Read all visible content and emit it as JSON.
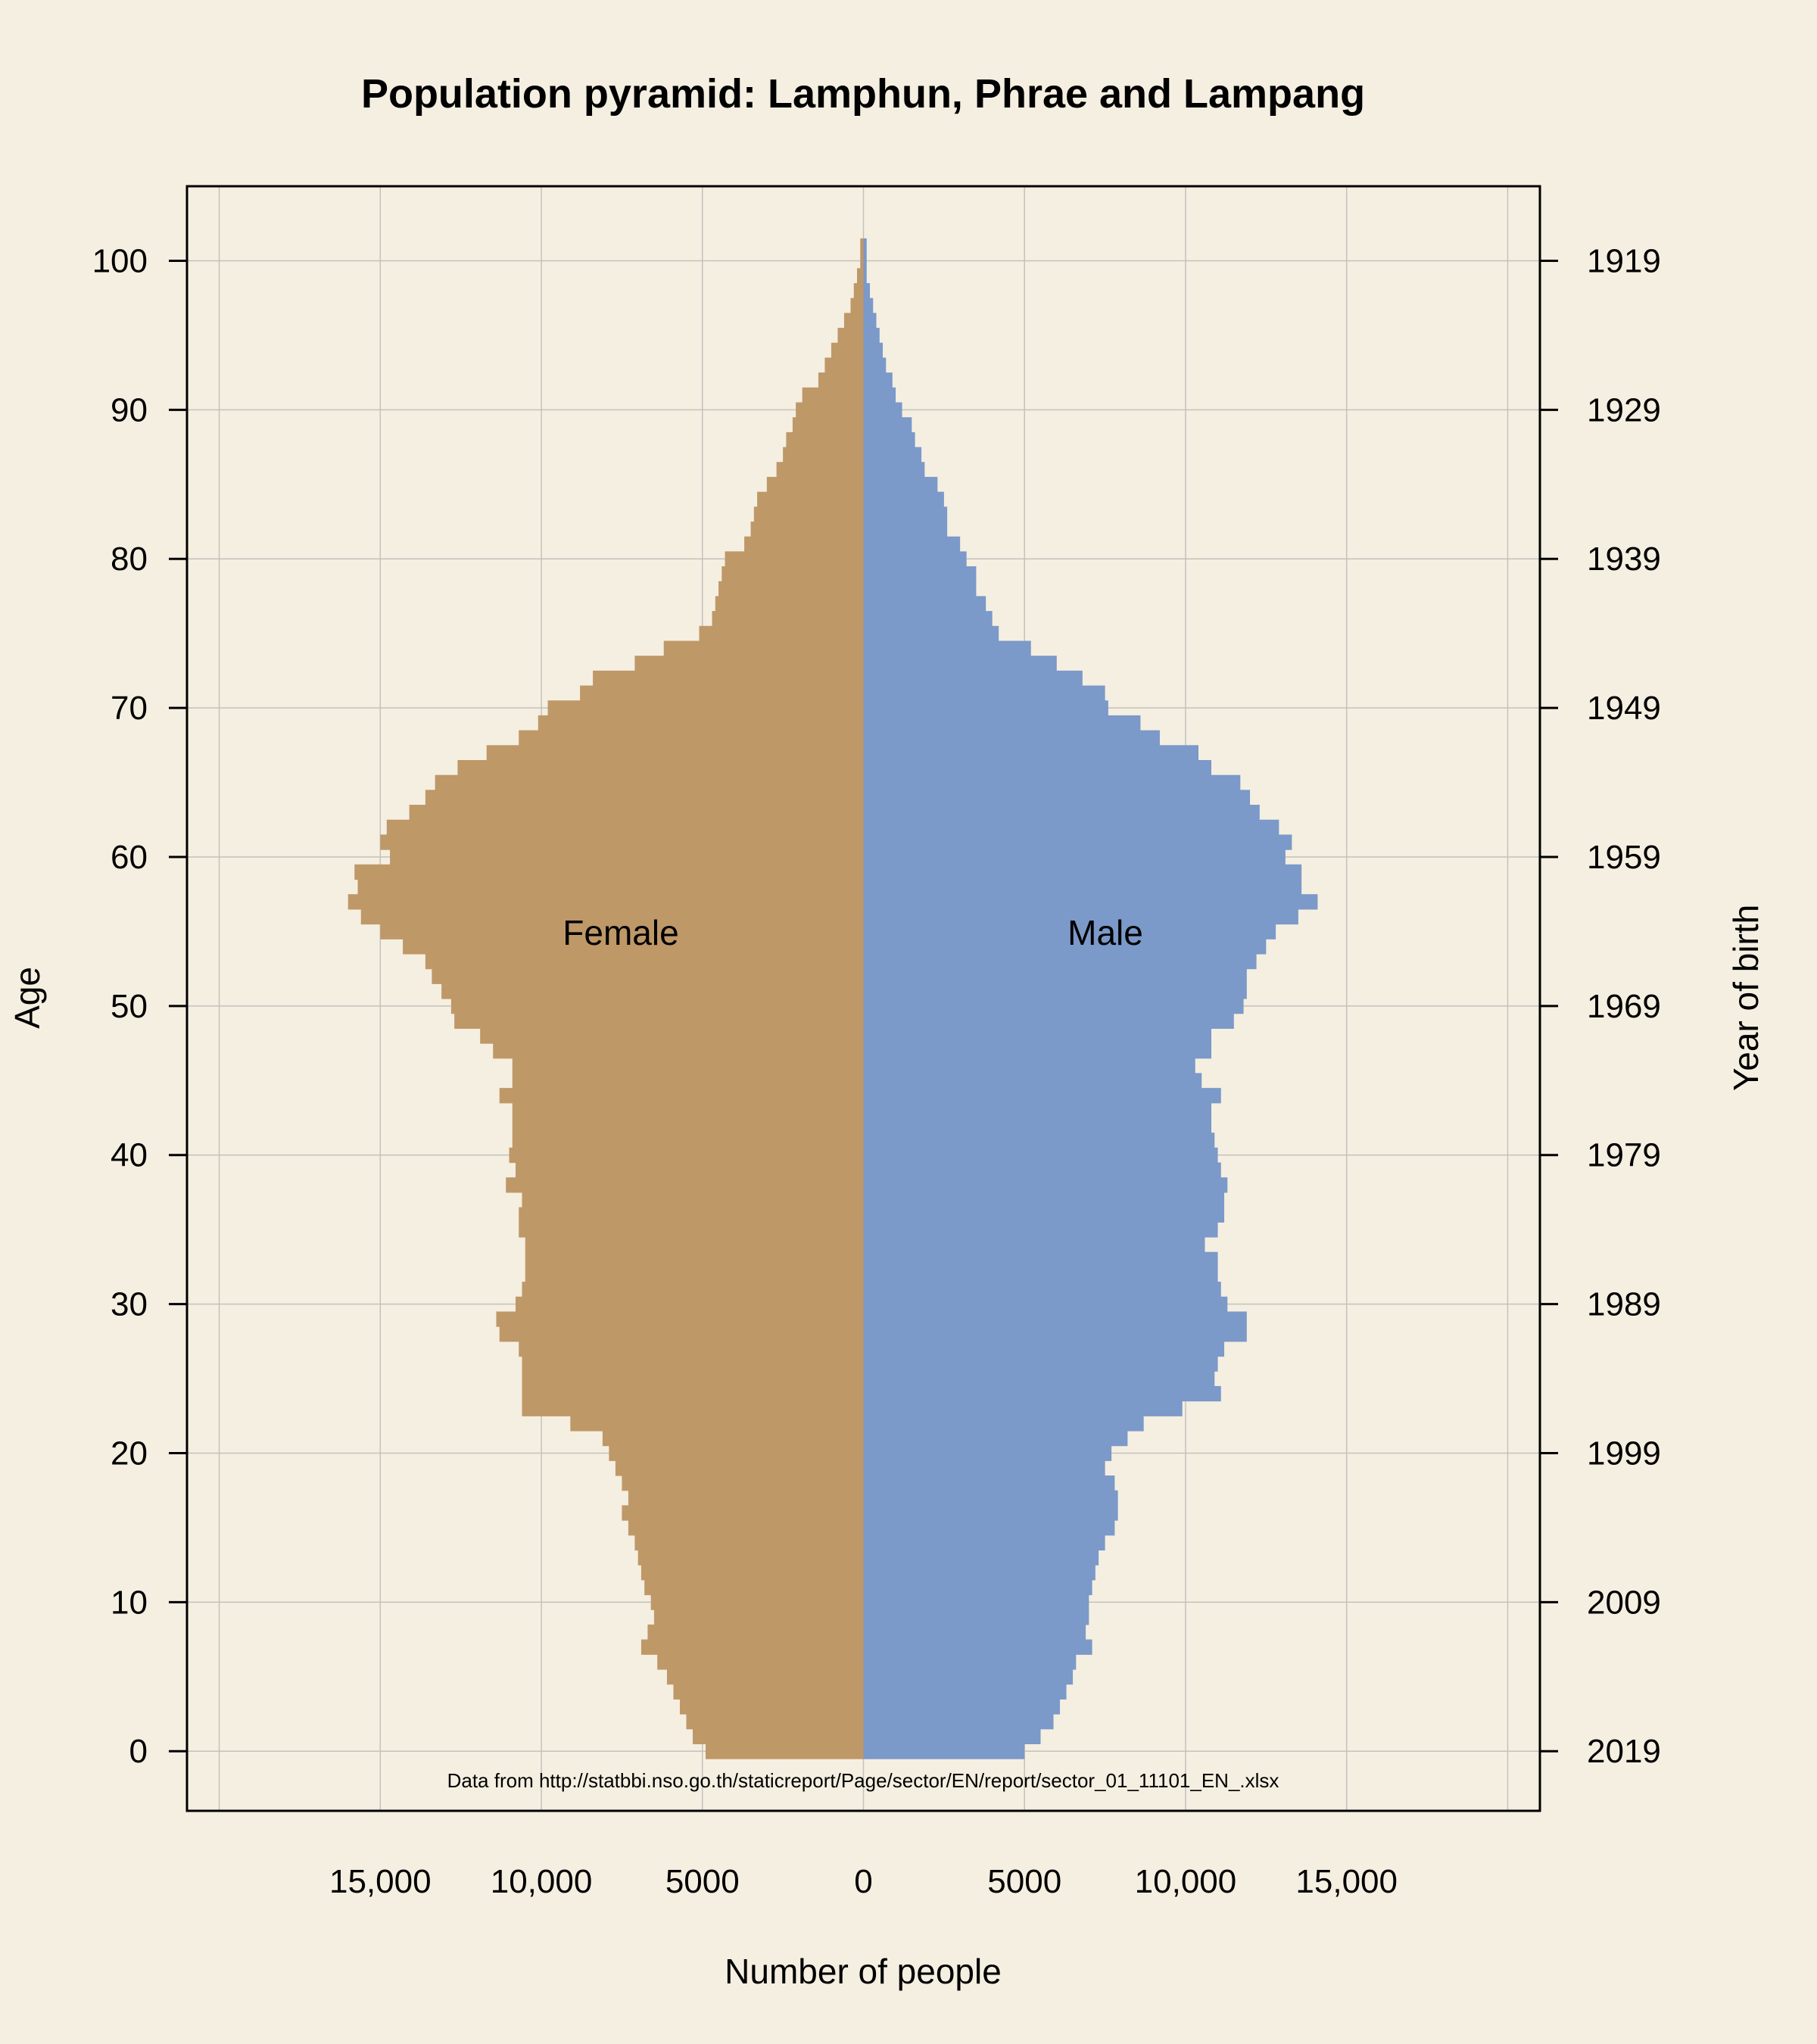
{
  "chart_data": {
    "type": "bar",
    "orientation": "horizontal-pyramid",
    "title": "Population pyramid: Lamphun, Phrae and Lampang",
    "xlabel": "Number of people",
    "ylabel": "Age",
    "y2label": "Year of birth",
    "source_note": "Data from http://statbbi.nso.go.th/staticreport/Page/sector/EN/report/sector_01_11101_EN_.xlsx",
    "xlim": [
      -21000,
      21000
    ],
    "ylim": [
      -4,
      105
    ],
    "grid": true,
    "x_ticks": [
      {
        "value": -15000,
        "label": "15,000"
      },
      {
        "value": -10000,
        "label": "10,000"
      },
      {
        "value": -5000,
        "label": "5000"
      },
      {
        "value": 0,
        "label": "0"
      },
      {
        "value": 5000,
        "label": "5000"
      },
      {
        "value": 10000,
        "label": "10,000"
      },
      {
        "value": 15000,
        "label": "15,000"
      }
    ],
    "x_grid": [
      -20000,
      -15000,
      -10000,
      -5000,
      0,
      5000,
      10000,
      15000,
      20000
    ],
    "y_ticks": [
      {
        "value": 0,
        "label": "0"
      },
      {
        "value": 10,
        "label": "10"
      },
      {
        "value": 20,
        "label": "20"
      },
      {
        "value": 30,
        "label": "30"
      },
      {
        "value": 40,
        "label": "40"
      },
      {
        "value": 50,
        "label": "50"
      },
      {
        "value": 60,
        "label": "60"
      },
      {
        "value": 70,
        "label": "70"
      },
      {
        "value": 80,
        "label": "80"
      },
      {
        "value": 90,
        "label": "90"
      },
      {
        "value": 100,
        "label": "100"
      }
    ],
    "y2_ticks": [
      {
        "value": 0,
        "label": "2019"
      },
      {
        "value": 10,
        "label": "2009"
      },
      {
        "value": 20,
        "label": "1999"
      },
      {
        "value": 30,
        "label": "1989"
      },
      {
        "value": 40,
        "label": "1979"
      },
      {
        "value": 50,
        "label": "1969"
      },
      {
        "value": 60,
        "label": "1959"
      },
      {
        "value": 70,
        "label": "1949"
      },
      {
        "value": 80,
        "label": "1939"
      },
      {
        "value": 90,
        "label": "1929"
      },
      {
        "value": 100,
        "label": "1919"
      }
    ],
    "ages": [
      0,
      1,
      2,
      3,
      4,
      5,
      6,
      7,
      8,
      9,
      10,
      11,
      12,
      13,
      14,
      15,
      16,
      17,
      18,
      19,
      20,
      21,
      22,
      23,
      24,
      25,
      26,
      27,
      28,
      29,
      30,
      31,
      32,
      33,
      34,
      35,
      36,
      37,
      38,
      39,
      40,
      41,
      42,
      43,
      44,
      45,
      46,
      47,
      48,
      49,
      50,
      51,
      52,
      53,
      54,
      55,
      56,
      57,
      58,
      59,
      60,
      61,
      62,
      63,
      64,
      65,
      66,
      67,
      68,
      69,
      70,
      71,
      72,
      73,
      74,
      75,
      76,
      77,
      78,
      79,
      80,
      81,
      82,
      83,
      84,
      85,
      86,
      87,
      88,
      89,
      90,
      91,
      92,
      93,
      94,
      95,
      96,
      97,
      98,
      99,
      100,
      101
    ],
    "series": [
      {
        "name": "Female",
        "side": "left",
        "color": "#bf9868",
        "values": [
          4900,
          5300,
          5500,
          5700,
          5900,
          6100,
          6400,
          6900,
          6700,
          6500,
          6600,
          6800,
          6900,
          7000,
          7100,
          7300,
          7500,
          7300,
          7500,
          7700,
          7900,
          8100,
          9100,
          10600,
          10600,
          10600,
          10600,
          10700,
          11300,
          11400,
          10800,
          10600,
          10500,
          10500,
          10500,
          10700,
          10700,
          10600,
          11100,
          10800,
          11000,
          10900,
          10900,
          10900,
          11300,
          10900,
          10900,
          11500,
          11900,
          12700,
          12800,
          13100,
          13400,
          13600,
          14300,
          15000,
          15600,
          16000,
          15700,
          15800,
          14700,
          15000,
          14800,
          14100,
          13600,
          13300,
          12600,
          11700,
          10700,
          10100,
          9800,
          8800,
          8400,
          7100,
          6200,
          5100,
          4700,
          4600,
          4500,
          4400,
          4300,
          3700,
          3500,
          3400,
          3300,
          3000,
          2700,
          2500,
          2400,
          2200,
          2100,
          1900,
          1400,
          1200,
          1000,
          800,
          600,
          400,
          300,
          200,
          100,
          100
        ]
      },
      {
        "name": "Male",
        "side": "right",
        "color": "#7b99c9",
        "values": [
          5000,
          5500,
          5900,
          6100,
          6300,
          6500,
          6600,
          7100,
          6900,
          7000,
          7000,
          7100,
          7200,
          7300,
          7500,
          7800,
          7900,
          7900,
          7800,
          7500,
          7700,
          8200,
          8700,
          9900,
          11100,
          10900,
          11000,
          11200,
          11900,
          11900,
          11300,
          11100,
          11000,
          11000,
          10600,
          11000,
          11200,
          11200,
          11300,
          11100,
          11000,
          10900,
          10800,
          10800,
          11100,
          10500,
          10300,
          10800,
          10800,
          11500,
          11800,
          11900,
          11900,
          12200,
          12500,
          12800,
          13500,
          14100,
          13600,
          13600,
          13100,
          13300,
          12900,
          12300,
          12000,
          11700,
          10800,
          10400,
          9200,
          8600,
          7600,
          7500,
          6800,
          6000,
          5200,
          4200,
          4000,
          3800,
          3500,
          3500,
          3200,
          3000,
          2600,
          2600,
          2500,
          2300,
          1900,
          1800,
          1600,
          1500,
          1200,
          1000,
          900,
          700,
          600,
          500,
          400,
          300,
          200,
          100,
          100,
          100
        ]
      }
    ]
  }
}
